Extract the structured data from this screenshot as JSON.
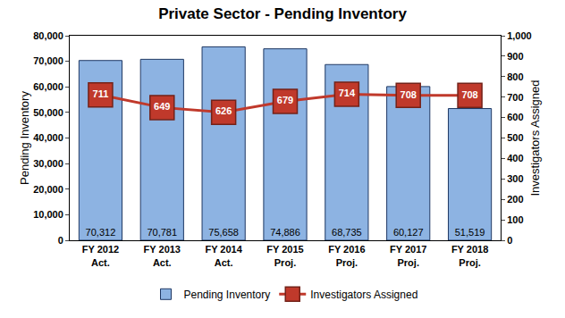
{
  "chart_data": {
    "type": "bar",
    "title": "Private Sector - Pending Inventory",
    "categories": [
      "FY 2012\nAct.",
      "FY 2013\nAct.",
      "FY 2014\nAct.",
      "FY 2015\nProj.",
      "FY 2016\nProj.",
      "FY 2017\nProj.",
      "FY 2018\nProj."
    ],
    "series": [
      {
        "name": "Pending Inventory",
        "type": "bar",
        "color": "#8db3e2",
        "values": [
          70312,
          70781,
          75658,
          74886,
          68735,
          60127,
          51519
        ],
        "value_labels": [
          "70,312",
          "70,781",
          "75,658",
          "74,886",
          "68,735",
          "60,127",
          "51,519"
        ],
        "data_labels": true
      },
      {
        "name": "Investigators Assigned",
        "type": "line",
        "axis": "y2",
        "color": "#c0392b",
        "marker": "square",
        "values": [
          711,
          649,
          626,
          679,
          714,
          708,
          708
        ],
        "data_labels": true
      }
    ],
    "y_label": "Pending Inventory",
    "y2_label": "Investigators Assigned",
    "ylim": [
      0,
      80000
    ],
    "yticks": [
      0,
      {
        "value": 10000,
        "label": "10,000"
      },
      {
        "value": 20000,
        "label": "20,000"
      },
      {
        "value": 30000,
        "label": "30,000"
      },
      {
        "value": 40000,
        "label": "40,000"
      },
      {
        "value": 50000,
        "label": "50,000"
      },
      {
        "value": 60000,
        "label": "60,000"
      },
      {
        "value": 70000,
        "label": "70,000"
      },
      {
        "value": 80000,
        "label": "80,000"
      }
    ],
    "y2lim": [
      0,
      1000
    ],
    "y2ticks": [
      0,
      100,
      200,
      300,
      400,
      500,
      600,
      700,
      800,
      900,
      {
        "value": 1000,
        "label": "1,000"
      }
    ],
    "grid": false,
    "legend": "bottom"
  }
}
